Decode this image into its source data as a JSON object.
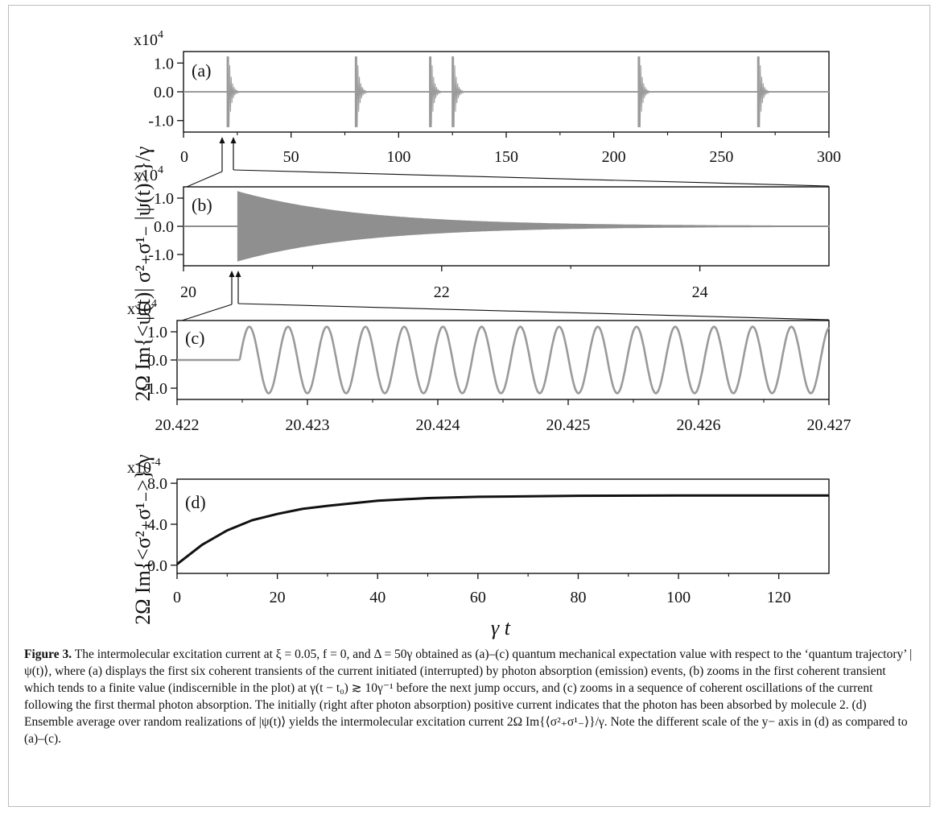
{
  "figure": {
    "y_label_top": "2Ω Im{<ψ(t)| σ²₊σ¹₋ |ψ(t)>}/γ",
    "y_label_bottom": "2Ω Im{<σ²₊σ¹₋>}/γ",
    "x_label": "γ t"
  },
  "caption": {
    "label": "Figure 3.",
    "text": "The intermolecular excitation current at ξ = 0.05, f = 0, and Δ = 50γ obtained as (a)–(c) quantum mechanical expectation value with respect to the ‘quantum trajectory’ |ψ(t)⟩, where (a) displays the first six coherent transients of the current initiated (interrupted) by photon absorption (emission) events, (b) zooms in the first coherent transient which tends to a finite value (indiscernible in the plot) at γ(t − t₀) ≳ 10γ⁻¹ before the next jump occurs, and (c) zooms in a sequence of coherent oscillations of the current following the first thermal photon absorption. The initially (right after photon absorption) positive current indicates that the photon has been absorbed by molecule 2. (d) Ensemble average over random realizations of |ψ(t)⟩ yields the intermolecular excitation current 2Ω Im{⟨σ²₊σ¹₋⟩}/γ. Note the different scale of the y− axis in (d) as compared to (a)–(c)."
  },
  "chart_data": [
    {
      "type": "line",
      "panel": "(a)",
      "multiplier": "x10",
      "multiplier_exp": "4",
      "xlim": [
        0,
        300
      ],
      "xticks": [
        "0",
        "50",
        "100",
        "150",
        "200",
        "250",
        "300"
      ],
      "ylim": [
        -1.4,
        1.4
      ],
      "yticks": [
        "1.0",
        "0.0",
        "-1.0"
      ],
      "ytick_values": [
        1.0,
        0.0,
        -1.0
      ],
      "x_vals": [
        0,
        50,
        100,
        150,
        200,
        250,
        300
      ],
      "transient_times": [
        20.42,
        80.0,
        114.5,
        125.0,
        211.5,
        267.0
      ],
      "amplitude": 1.23,
      "color": "#9a9a9a"
    },
    {
      "type": "line",
      "panel": "(b)",
      "multiplier": "x10",
      "multiplier_exp": "4",
      "xlim": [
        20,
        25
      ],
      "xticks": [
        "20",
        "22",
        "24"
      ],
      "x_vals": [
        20,
        22,
        24
      ],
      "ylim": [
        -1.4,
        1.4
      ],
      "yticks": [
        "1.0",
        "0.0",
        "-1.0"
      ],
      "ytick_values": [
        1.0,
        0.0,
        -1.0
      ],
      "onset": 20.42,
      "amplitude": 1.23,
      "color": "#8f8f8f"
    },
    {
      "type": "line",
      "panel": "(c)",
      "multiplier": "x10",
      "multiplier_exp": "4",
      "xlim": [
        20.422,
        20.427
      ],
      "xticks": [
        "20.422",
        "20.423",
        "20.424",
        "20.425",
        "20.426",
        "20.427"
      ],
      "x_vals": [
        20.422,
        20.423,
        20.424,
        20.425,
        20.426,
        20.427
      ],
      "ylim": [
        -1.4,
        1.4
      ],
      "yticks": [
        "1.0",
        "0.0",
        "-1.0"
      ],
      "ytick_values": [
        1.0,
        0.0,
        -1.0
      ],
      "onset": 20.42248,
      "period": 0.000297,
      "amplitude": 1.18,
      "color": "#9a9a9a"
    },
    {
      "type": "line",
      "panel": "(d)",
      "multiplier": "x10",
      "multiplier_exp": "-4",
      "xlim": [
        0,
        130
      ],
      "xticks": [
        "0",
        "20",
        "40",
        "60",
        "80",
        "100",
        "120"
      ],
      "x_vals": [
        0,
        20,
        40,
        60,
        80,
        100,
        120
      ],
      "ylim": [
        -0.8,
        8.4
      ],
      "yticks": [
        "8.0",
        "4.0",
        "0.0"
      ],
      "ytick_values": [
        8.0,
        4.0,
        0.0
      ],
      "x": [
        0,
        5,
        10,
        15,
        20,
        25,
        30,
        40,
        50,
        60,
        80,
        100,
        130
      ],
      "y": [
        0.1,
        2.0,
        3.4,
        4.4,
        5.0,
        5.5,
        5.8,
        6.3,
        6.55,
        6.68,
        6.78,
        6.8,
        6.8
      ],
      "color": "#111111"
    }
  ]
}
